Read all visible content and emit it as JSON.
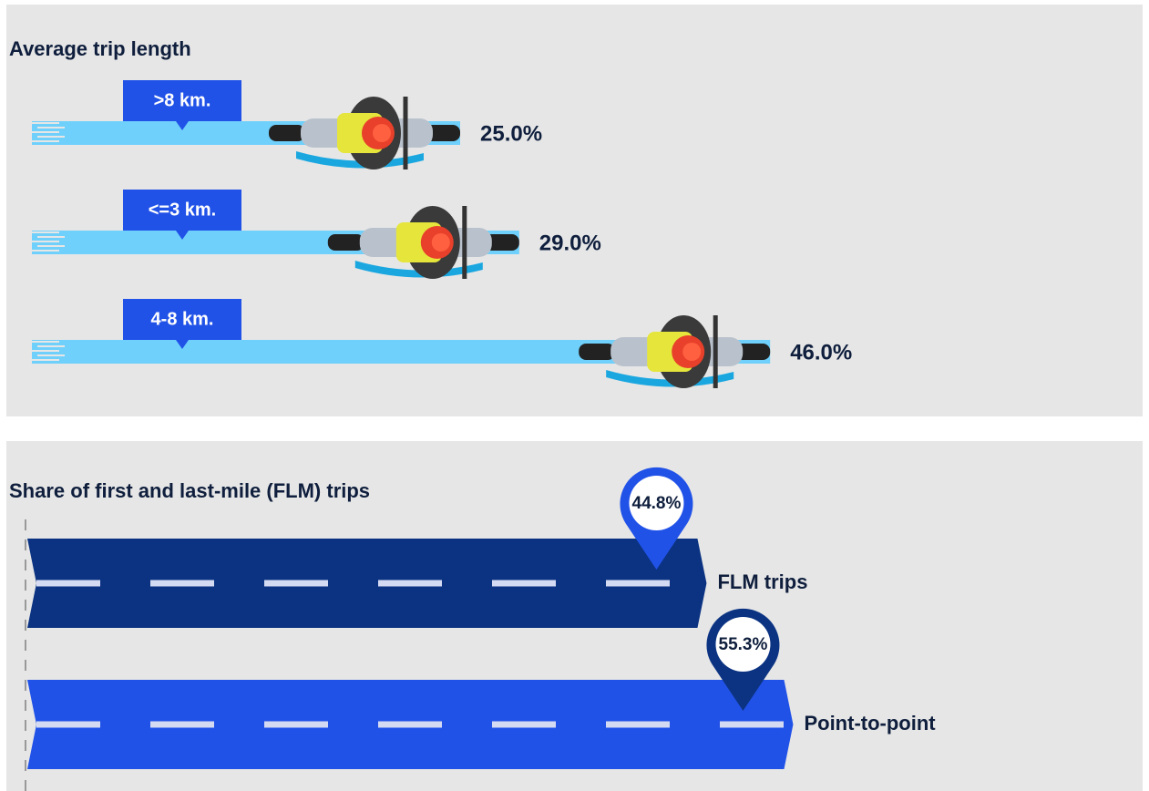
{
  "chart_data": [
    {
      "type": "trail",
      "title": "Average trip length",
      "categories": [
        ">8 km.",
        "<=3 km.",
        "4-8 km."
      ],
      "values": [
        25.0,
        29.0,
        46.0
      ],
      "value_labels": [
        "25.0%",
        "29.0%",
        "46.0%"
      ],
      "color": "#6fd0fb"
    },
    {
      "type": "road",
      "title": "Share of first and last-mile (FLM) trips",
      "categories": [
        "FLM trips",
        "Point-to-point"
      ],
      "values": [
        44.8,
        55.3
      ],
      "value_labels": [
        "44.8%",
        "55.3%"
      ],
      "colors": [
        "#0b3382",
        "#2152e8"
      ]
    }
  ]
}
